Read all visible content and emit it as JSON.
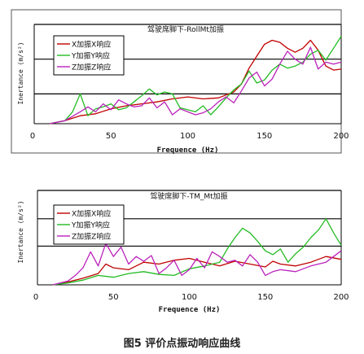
{
  "caption": "图5 评价点振动响应曲线",
  "chart_data": [
    {
      "type": "line",
      "title": "驾驶席脚下-RollMt加振",
      "xlabel": "Frequence (Hz)",
      "ylabel": "Inertance (m/s²)",
      "xlim": [
        0,
        200
      ],
      "ylim": [
        0,
        1
      ],
      "x_ticks": [
        "0",
        "50",
        "100",
        "150",
        "200"
      ],
      "grid": "horizontal",
      "legend_position": "top-left",
      "series": [
        {
          "name": "X加振X响应",
          "color": "#c00000",
          "x": [
            10,
            20,
            30,
            40,
            50,
            60,
            70,
            80,
            90,
            100,
            110,
            120,
            130,
            135,
            140,
            145,
            150,
            155,
            160,
            165,
            170,
            175,
            180,
            185,
            190,
            195,
            200
          ],
          "y": [
            0.0,
            0.03,
            0.08,
            0.1,
            0.15,
            0.18,
            0.2,
            0.22,
            0.25,
            0.27,
            0.25,
            0.26,
            0.32,
            0.4,
            0.56,
            0.68,
            0.8,
            0.84,
            0.82,
            0.76,
            0.72,
            0.76,
            0.84,
            0.74,
            0.58,
            0.54,
            0.55
          ]
        },
        {
          "name": "Y加振Y响应",
          "color": "#22bb22",
          "x": [
            10,
            20,
            25,
            30,
            35,
            40,
            45,
            50,
            55,
            60,
            65,
            70,
            75,
            80,
            85,
            90,
            95,
            100,
            105,
            110,
            115,
            120,
            125,
            130,
            135,
            140,
            145,
            150,
            155,
            160,
            165,
            170,
            175,
            180,
            185,
            190,
            195,
            200
          ],
          "y": [
            0.0,
            0.03,
            0.12,
            0.3,
            0.08,
            0.15,
            0.17,
            0.2,
            0.14,
            0.16,
            0.22,
            0.28,
            0.35,
            0.29,
            0.32,
            0.3,
            0.16,
            0.14,
            0.12,
            0.18,
            0.09,
            0.17,
            0.26,
            0.34,
            0.4,
            0.53,
            0.41,
            0.44,
            0.54,
            0.6,
            0.56,
            0.58,
            0.62,
            0.7,
            0.74,
            0.64,
            0.76,
            0.88
          ]
        },
        {
          "name": "Z加振Z响应",
          "color": "#bb22bb",
          "x": [
            10,
            20,
            30,
            35,
            40,
            45,
            50,
            55,
            60,
            65,
            70,
            75,
            80,
            85,
            90,
            95,
            100,
            105,
            110,
            115,
            120,
            125,
            130,
            135,
            140,
            145,
            150,
            155,
            160,
            165,
            170,
            175,
            180,
            185,
            190,
            195,
            200
          ],
          "y": [
            0.0,
            0.03,
            0.12,
            0.17,
            0.12,
            0.2,
            0.14,
            0.24,
            0.2,
            0.17,
            0.18,
            0.26,
            0.16,
            0.22,
            0.09,
            0.15,
            0.12,
            0.09,
            0.11,
            0.15,
            0.22,
            0.27,
            0.21,
            0.33,
            0.46,
            0.52,
            0.38,
            0.45,
            0.6,
            0.73,
            0.65,
            0.6,
            0.77,
            0.55,
            0.62,
            0.6,
            0.62
          ]
        }
      ]
    },
    {
      "type": "line",
      "title": "驾驶席脚下-TM_Mt加振",
      "xlabel": "Frequence (Hz)",
      "ylabel": "Inertance (m/s²)",
      "xlim": [
        0,
        200
      ],
      "ylim": [
        0,
        1
      ],
      "x_ticks": [
        "0",
        "50",
        "100",
        "150",
        "200"
      ],
      "grid": "horizontal",
      "legend_position": "top-left",
      "series": [
        {
          "name": "X加振X响应",
          "color": "#c00000",
          "x": [
            10,
            20,
            30,
            40,
            45,
            50,
            60,
            70,
            80,
            90,
            100,
            110,
            120,
            130,
            140,
            150,
            155,
            160,
            170,
            180,
            190,
            200
          ],
          "y": [
            0.0,
            0.03,
            0.07,
            0.12,
            0.22,
            0.18,
            0.16,
            0.24,
            0.22,
            0.26,
            0.28,
            0.24,
            0.2,
            0.25,
            0.22,
            0.19,
            0.25,
            0.22,
            0.2,
            0.24,
            0.3,
            0.27
          ]
        },
        {
          "name": "Y加振Y响应",
          "color": "#22bb22",
          "x": [
            10,
            20,
            30,
            40,
            50,
            60,
            70,
            80,
            90,
            100,
            110,
            120,
            125,
            130,
            135,
            140,
            145,
            150,
            155,
            160,
            165,
            170,
            175,
            180,
            185,
            190,
            195,
            200
          ],
          "y": [
            0.0,
            0.02,
            0.05,
            0.1,
            0.08,
            0.12,
            0.14,
            0.11,
            0.1,
            0.17,
            0.2,
            0.24,
            0.38,
            0.5,
            0.6,
            0.55,
            0.46,
            0.36,
            0.32,
            0.38,
            0.24,
            0.33,
            0.4,
            0.5,
            0.58,
            0.7,
            0.55,
            0.42
          ]
        },
        {
          "name": "Z加振Z响应",
          "color": "#bb22bb",
          "x": [
            10,
            20,
            25,
            30,
            35,
            40,
            45,
            50,
            55,
            60,
            65,
            70,
            75,
            80,
            85,
            90,
            95,
            100,
            105,
            110,
            115,
            120,
            125,
            130,
            135,
            140,
            145,
            150,
            155,
            160,
            170,
            180,
            190,
            200
          ],
          "y": [
            0.0,
            0.04,
            0.1,
            0.18,
            0.35,
            0.2,
            0.44,
            0.3,
            0.4,
            0.22,
            0.3,
            0.25,
            0.31,
            0.12,
            0.18,
            0.26,
            0.1,
            0.16,
            0.28,
            0.18,
            0.35,
            0.3,
            0.24,
            0.26,
            0.2,
            0.32,
            0.24,
            0.1,
            0.14,
            0.16,
            0.14,
            0.2,
            0.24,
            0.36
          ]
        }
      ]
    }
  ]
}
